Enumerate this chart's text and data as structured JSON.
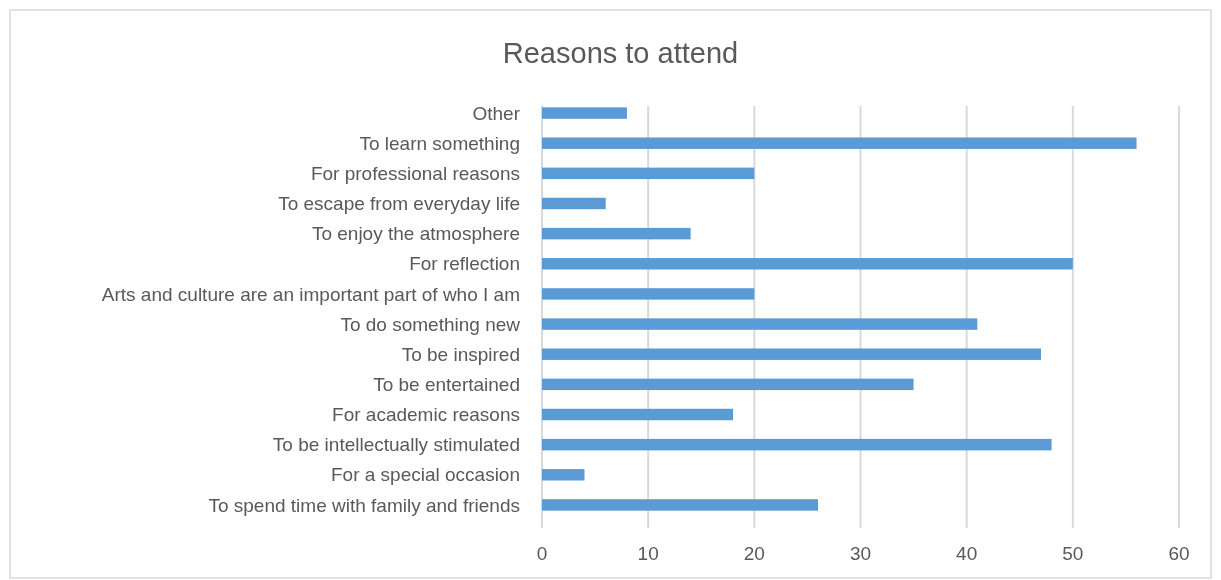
{
  "chart_data": {
    "type": "bar",
    "orientation": "horizontal",
    "title": "Reasons to attend",
    "categories": [
      "Other",
      "To learn something",
      "For professional reasons",
      "To escape from everyday life",
      "To enjoy the atmosphere",
      "For reflection",
      "Arts and culture are an important part of who I am",
      "To do something new",
      "To be inspired",
      "To be entertained",
      "For academic reasons",
      "To be intellectually stimulated",
      "For a special occasion",
      "To spend time with family and friends"
    ],
    "values": [
      8,
      56,
      20,
      6,
      14,
      50,
      20,
      41,
      47,
      35,
      18,
      48,
      4,
      26
    ],
    "color": "#5b9bd5",
    "xlim": [
      0,
      60
    ],
    "xticks": [
      0,
      10,
      20,
      30,
      40,
      50,
      60
    ],
    "grid": "x"
  }
}
